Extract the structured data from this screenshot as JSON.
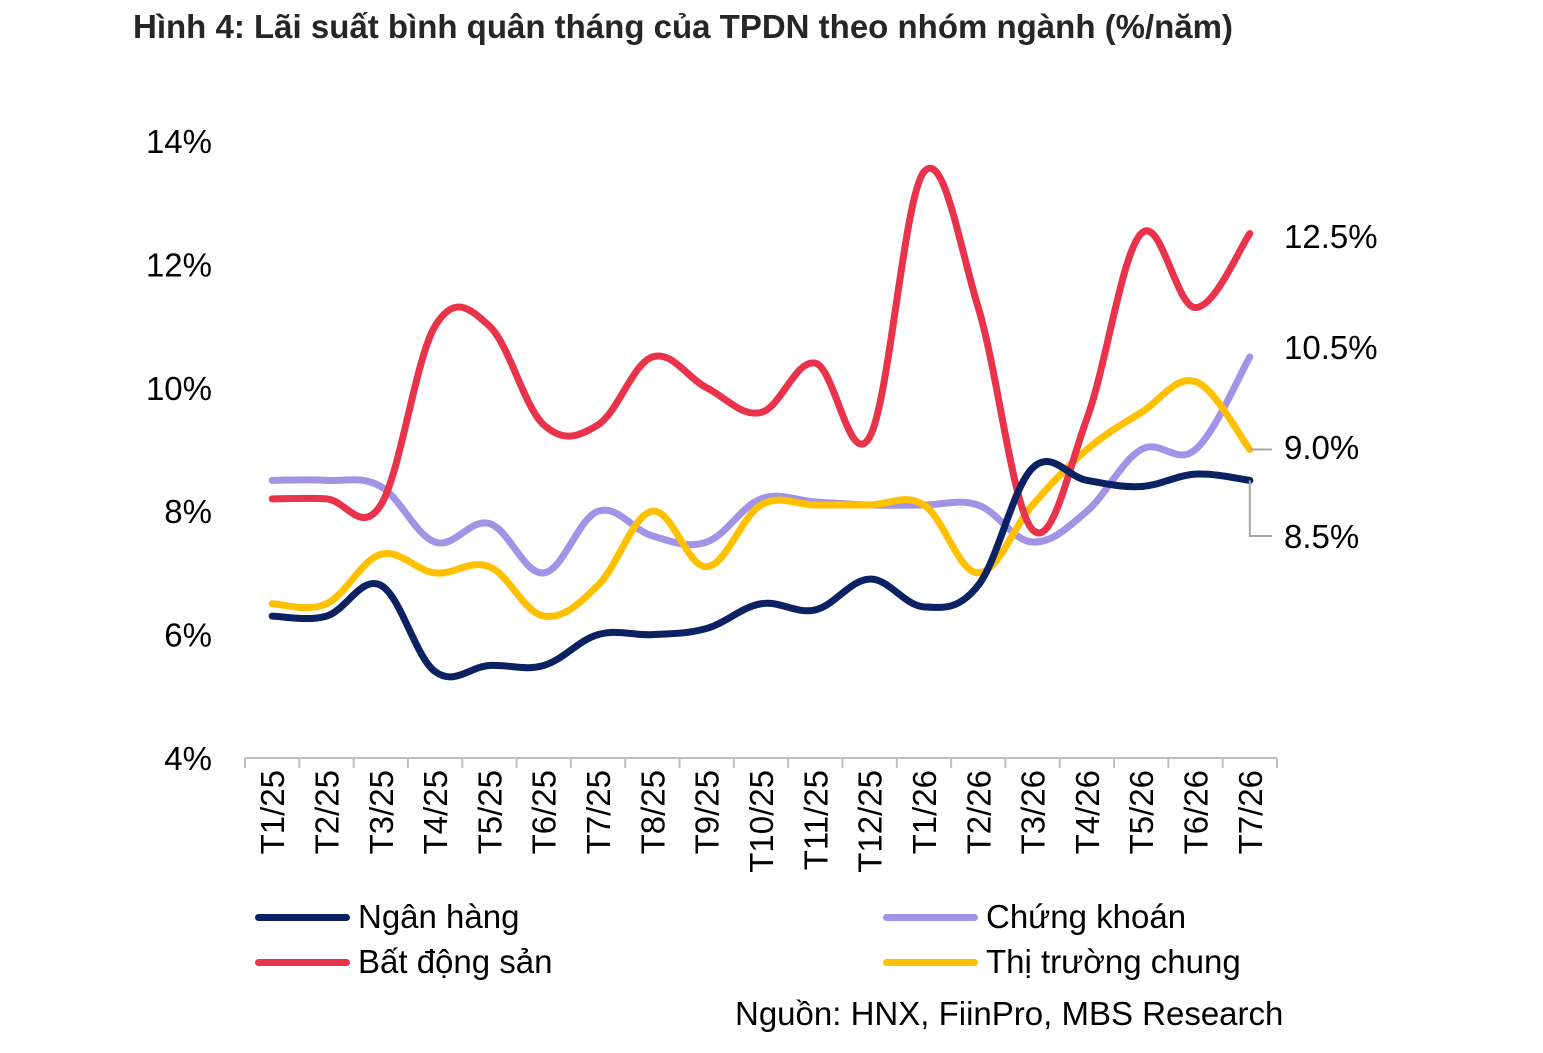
{
  "title": "Hình 4: Lãi suất bình quân tháng của TPDN theo nhóm ngành (%/năm)",
  "source": "Nguồn: HNX, FiinPro, MBS Research",
  "chart_data": {
    "type": "line",
    "title": "Hình 4: Lãi suất bình quân tháng của TPDN theo nhóm ngành (%/năm)",
    "categories": [
      "T1/25",
      "T2/25",
      "T3/25",
      "T4/25",
      "T5/25",
      "T6/25",
      "T7/25",
      "T8/25",
      "T9/25",
      "T10/25",
      "T11/25",
      "T12/25",
      "T1/26",
      "T2/26",
      "T3/26",
      "T4/26",
      "T5/26",
      "T6/26",
      "T7/26"
    ],
    "ylim": [
      4,
      14
    ],
    "yticks": [
      4,
      6,
      8,
      10,
      12,
      14
    ],
    "ytick_labels": [
      "4%",
      "6%",
      "8%",
      "10%",
      "12%",
      "14%"
    ],
    "grid": false,
    "legend_position": "bottom",
    "series": [
      {
        "name": "Ngân hàng",
        "color": "#0B2161",
        "values": [
          6.3,
          6.3,
          6.8,
          5.4,
          5.5,
          5.5,
          6.0,
          6.0,
          6.1,
          6.5,
          6.4,
          6.9,
          6.45,
          6.8,
          8.7,
          8.5,
          8.4,
          8.6,
          8.5
        ]
      },
      {
        "name": "Chứng khoán",
        "color": "#A393E6",
        "values": [
          8.5,
          8.5,
          8.4,
          7.5,
          7.8,
          7.0,
          8.0,
          7.6,
          7.5,
          8.2,
          8.15,
          8.1,
          8.1,
          8.1,
          7.5,
          8.0,
          9.0,
          9.0,
          10.5
        ]
      },
      {
        "name": "Bất động sản",
        "color": "#E8334A",
        "values": [
          8.2,
          8.2,
          8.1,
          11.0,
          11.0,
          9.4,
          9.4,
          10.5,
          10.0,
          9.6,
          10.4,
          9.2,
          13.5,
          11.3,
          7.7,
          9.5,
          12.5,
          11.3,
          12.5
        ]
      },
      {
        "name": "Thị trường chung",
        "color": "#FFC000",
        "values": [
          6.5,
          6.5,
          7.3,
          7.0,
          7.1,
          6.3,
          6.8,
          8.0,
          7.1,
          8.1,
          8.1,
          8.1,
          8.1,
          7.0,
          8.1,
          9.0,
          9.6,
          10.1,
          9.0
        ]
      }
    ],
    "end_labels": [
      {
        "series": "Bất động sản",
        "text": "12.5%"
      },
      {
        "series": "Chứng khoán",
        "text": "10.5%"
      },
      {
        "series": "Thị trường chung",
        "text": "9.0%"
      },
      {
        "series": "Ngân hàng",
        "text": "8.5%"
      }
    ]
  }
}
